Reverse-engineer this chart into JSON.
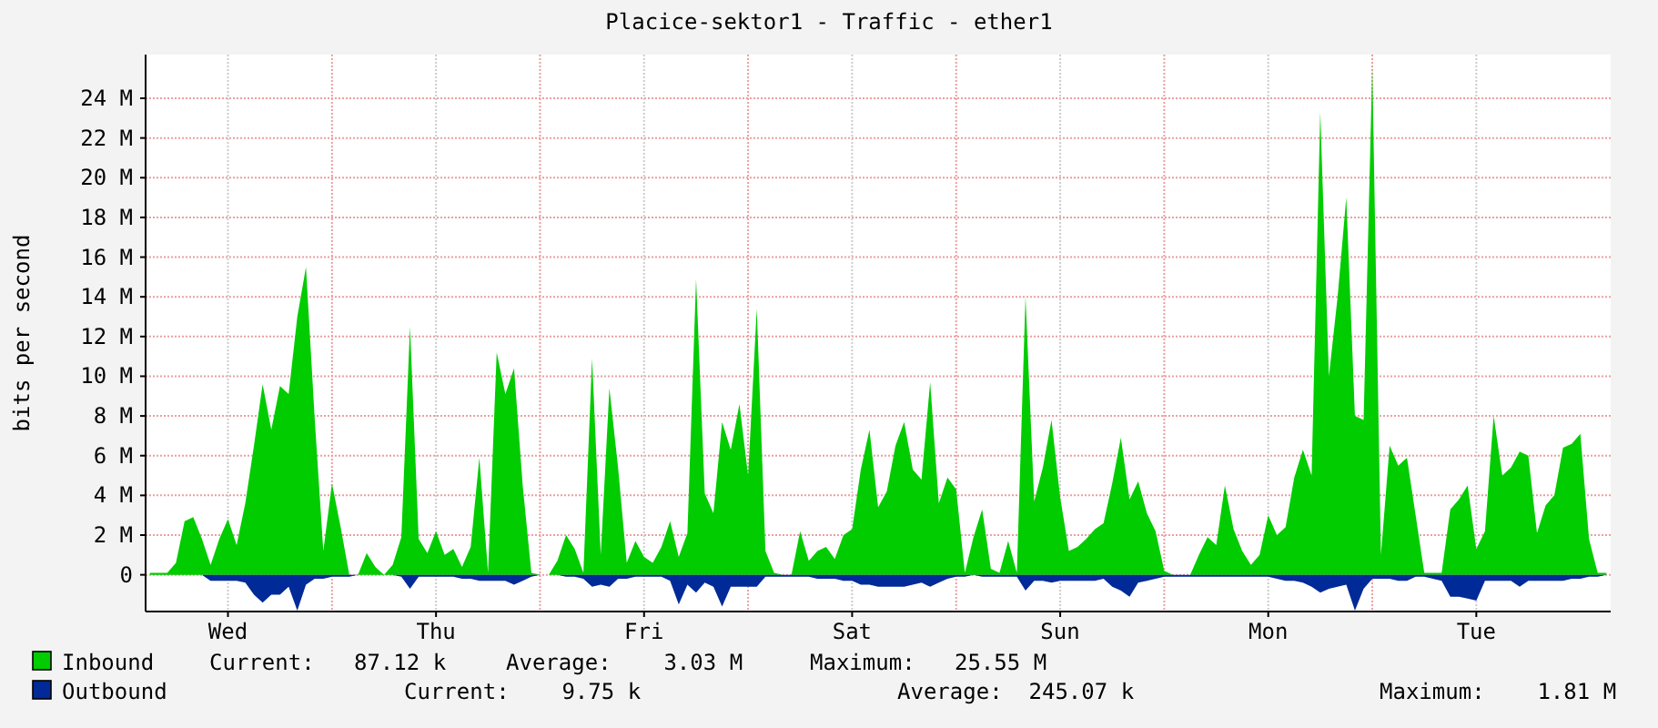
{
  "chart_data": {
    "type": "area",
    "title": "Placice-sektor1 - Traffic - ether1",
    "ylabel": "bits per second",
    "categories": [
      null,
      null,
      null,
      null,
      null,
      null,
      null,
      null,
      null,
      "Wed",
      null,
      null,
      null,
      null,
      null,
      null,
      null,
      null,
      null,
      null,
      null,
      null,
      null,
      null,
      null,
      null,
      null,
      null,
      null,
      null,
      null,
      null,
      null,
      "Thu",
      null,
      null,
      null,
      null,
      null,
      null,
      null,
      null,
      null,
      null,
      null,
      null,
      null,
      null,
      null,
      null,
      null,
      null,
      null,
      null,
      null,
      null,
      null,
      "Fri",
      null,
      null,
      null,
      null,
      null,
      null,
      null,
      null,
      null,
      null,
      null,
      null,
      null,
      null,
      null,
      null,
      null,
      null,
      null,
      null,
      null,
      null,
      null,
      "Sat",
      null,
      null,
      null,
      null,
      null,
      null,
      null,
      null,
      null,
      null,
      null,
      null,
      null,
      null,
      null,
      null,
      null,
      null,
      null,
      null,
      null,
      null,
      null,
      "Sun",
      null,
      null,
      null,
      null,
      null,
      null,
      null,
      null,
      null,
      null,
      null,
      null,
      null,
      null,
      null,
      null,
      null,
      null,
      null,
      null,
      null,
      null,
      null,
      "Mon",
      null,
      null,
      null,
      null,
      null,
      null,
      null,
      null,
      null,
      null,
      null,
      null,
      null,
      null,
      null,
      null,
      null,
      null,
      null,
      null,
      null,
      null,
      null,
      "Tue",
      null,
      null,
      null,
      null,
      null,
      null,
      null,
      null,
      null,
      null,
      null,
      null,
      null,
      null,
      null
    ],
    "ylim": [
      -1.85,
      26.2
    ],
    "yticks": [
      {
        "value": 0,
        "label": "0"
      },
      {
        "value": 2,
        "label": "2 M"
      },
      {
        "value": 4,
        "label": "4 M"
      },
      {
        "value": 6,
        "label": "6 M"
      },
      {
        "value": 8,
        "label": "8 M"
      },
      {
        "value": 10,
        "label": "10 M"
      },
      {
        "value": 12,
        "label": "12 M"
      },
      {
        "value": 14,
        "label": "14 M"
      },
      {
        "value": 16,
        "label": "16 M"
      },
      {
        "value": 18,
        "label": "18 M"
      },
      {
        "value": 20,
        "label": "20 M"
      },
      {
        "value": 22,
        "label": "22 M"
      },
      {
        "value": 24,
        "label": "24 M"
      }
    ],
    "grid": true,
    "legend": "bottom left",
    "annotations": [
      "Current:   87.12 k",
      "Average:    3.03 M",
      "Maximum:   25.55 M",
      "Current:    9.75 k",
      "Average:  245.07 k",
      "Maximum:    1.81 M"
    ],
    "series": [
      {
        "name": "Inbound",
        "color": "#00cc00",
        "values": [
          0.1,
          0.1,
          0.1,
          0.6,
          2.7,
          2.9,
          1.8,
          0.5,
          1.8,
          2.8,
          1.5,
          3.6,
          6.5,
          9.6,
          7.3,
          9.5,
          9.1,
          13.0,
          15.5,
          7.9,
          1.2,
          4.6,
          2.4,
          0,
          0,
          1.1,
          0.4,
          0,
          0.5,
          1.9,
          12.5,
          1.8,
          1.1,
          2.2,
          1.0,
          1.3,
          0.4,
          1.4,
          5.9,
          0.1,
          11.2,
          9.1,
          10.4,
          4.5,
          0.1,
          0,
          0,
          0.7,
          2.0,
          1.3,
          0.1,
          10.9,
          1.0,
          9.4,
          5.4,
          0.6,
          1.7,
          0.9,
          0.6,
          1.4,
          2.7,
          0.9,
          2.1,
          14.9,
          4.1,
          3.1,
          7.7,
          6.3,
          8.6,
          5.0,
          13.4,
          1.2,
          0.1,
          0,
          0,
          2.2,
          0.7,
          1.2,
          1.4,
          0.8,
          2.0,
          2.3,
          5.3,
          7.3,
          3.4,
          4.2,
          6.5,
          7.7,
          5.3,
          4.8,
          9.7,
          3.6,
          4.9,
          4.3,
          0.1,
          1.9,
          3.3,
          0.3,
          0.1,
          1.7,
          0.1,
          14.0,
          3.7,
          5.4,
          7.8,
          3.9,
          1.2,
          1.4,
          1.8,
          2.3,
          2.6,
          4.6,
          6.9,
          3.8,
          4.7,
          3.1,
          2.2,
          0.2,
          0,
          0,
          0,
          1.0,
          1.9,
          1.5,
          4.5,
          2.3,
          1.2,
          0.5,
          1.0,
          3.0,
          2.0,
          2.4,
          4.9,
          6.3,
          5.0,
          23.3,
          10.0,
          14.0,
          19.0,
          8.0,
          7.8,
          25.6,
          1.0,
          6.5,
          5.5,
          5.9,
          3.0,
          0.1,
          0.1,
          0.1,
          3.3,
          3.8,
          4.5,
          1.3,
          2.2,
          8.0,
          5.0,
          5.4,
          6.2,
          6.0,
          2.1,
          3.5,
          4.0,
          6.4,
          6.6,
          7.1,
          1.8,
          0.1,
          0.1
        ]
      },
      {
        "name": "Outbound",
        "color": "#002a97",
        "values": [
          0,
          0,
          0,
          0,
          0,
          0,
          0,
          -0.3,
          -0.3,
          -0.3,
          -0.3,
          -0.4,
          -1.0,
          -1.4,
          -1.0,
          -1.0,
          -0.6,
          -1.8,
          -0.5,
          -0.2,
          -0.2,
          -0.1,
          -0.1,
          -0.1,
          0,
          0,
          0,
          0,
          0,
          -0.1,
          -0.7,
          -0.1,
          -0.1,
          -0.1,
          -0.1,
          -0.1,
          -0.2,
          -0.2,
          -0.3,
          -0.3,
          -0.3,
          -0.3,
          -0.5,
          -0.3,
          -0.1,
          0,
          0,
          0,
          -0.1,
          -0.1,
          -0.2,
          -0.6,
          -0.5,
          -0.6,
          -0.2,
          -0.2,
          -0.1,
          -0.1,
          -0.1,
          -0.1,
          -0.3,
          -1.5,
          -0.5,
          -0.9,
          -0.4,
          -0.6,
          -1.6,
          -0.6,
          -0.6,
          -0.6,
          -0.6,
          -0.1,
          -0.1,
          -0.1,
          -0.1,
          -0.1,
          -0.1,
          -0.2,
          -0.2,
          -0.2,
          -0.3,
          -0.3,
          -0.5,
          -0.5,
          -0.6,
          -0.6,
          -0.6,
          -0.6,
          -0.5,
          -0.4,
          -0.6,
          -0.4,
          -0.2,
          -0.1,
          -0.1,
          0,
          -0.1,
          -0.1,
          -0.1,
          -0.1,
          -0.1,
          -0.8,
          -0.3,
          -0.3,
          -0.4,
          -0.3,
          -0.3,
          -0.3,
          -0.3,
          -0.3,
          -0.2,
          -0.6,
          -0.8,
          -1.1,
          -0.4,
          -0.3,
          -0.2,
          -0.1,
          -0.1,
          -0.1,
          -0.1,
          -0.1,
          -0.1,
          -0.1,
          -0.1,
          -0.1,
          -0.1,
          -0.1,
          -0.1,
          -0.1,
          -0.2,
          -0.3,
          -0.3,
          -0.4,
          -0.6,
          -0.9,
          -0.7,
          -0.6,
          -0.5,
          -1.8,
          -0.7,
          -0.2,
          -0.2,
          -0.2,
          -0.3,
          -0.3,
          -0.1,
          -0.1,
          -0.2,
          -0.3,
          -1.1,
          -1.1,
          -1.2,
          -1.3,
          -0.3,
          -0.3,
          -0.3,
          -0.3,
          -0.6,
          -0.3,
          -0.3,
          -0.3,
          -0.3,
          -0.3,
          -0.2,
          -0.2,
          -0.1,
          -0.1,
          0
        ]
      }
    ]
  }
}
